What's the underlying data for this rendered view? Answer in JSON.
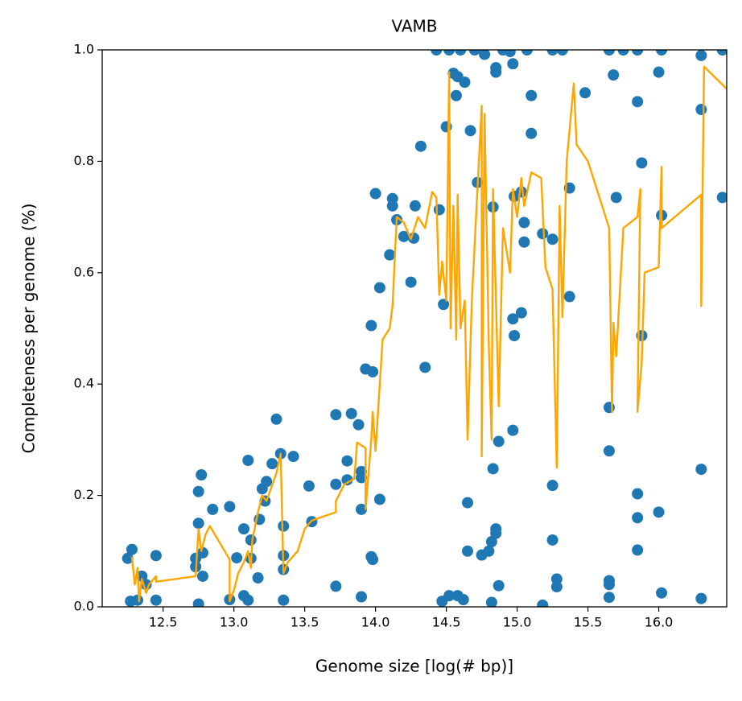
{
  "chart_data": {
    "type": "scatter",
    "title": "VAMB",
    "x_label": "Genome size [log(# bp)]",
    "y_label": "Completeness per genome (%)",
    "xlim": [
      12.07,
      16.48
    ],
    "ylim": [
      0,
      1
    ],
    "xticks": [
      12.5,
      {
        "value": 13,
        "label": "13.0"
      },
      13.5,
      {
        "value": 14,
        "label": "14.0"
      },
      14.5,
      {
        "value": 15,
        "label": "15.0"
      },
      15.5,
      {
        "value": 16,
        "label": "16.0"
      }
    ],
    "yticks": [
      {
        "value": 0,
        "label": "0.0"
      },
      0.2,
      0.4,
      0.6,
      0.8,
      {
        "value": 1,
        "label": "1.0"
      }
    ],
    "series": [
      {
        "type": "scatter",
        "color": "#1f77b4",
        "x": [
          12.25,
          12.28,
          12.27,
          12.32,
          12.35,
          12.38,
          12.45,
          12.45,
          12.73,
          12.73,
          12.75,
          12.75,
          12.77,
          12.78,
          12.78,
          12.75,
          12.85,
          12.97,
          12.97,
          13.02,
          13.07,
          13.07,
          13.1,
          13.1,
          13.12,
          13.12,
          13.17,
          13.18,
          13.2,
          13.22,
          13.23,
          13.27,
          13.3,
          13.33,
          13.35,
          13.35,
          13.35,
          13.35,
          13.42,
          13.53,
          13.55,
          13.72,
          13.72,
          13.72,
          13.8,
          13.8,
          13.83,
          13.88,
          13.9,
          13.9,
          13.9,
          13.9,
          13.93,
          13.97,
          13.97,
          13.98,
          13.98,
          14.0,
          14.03,
          14.03,
          14.1,
          14.12,
          14.12,
          14.15,
          14.2,
          14.25,
          14.27,
          14.28,
          14.32,
          14.35,
          14.43,
          14.45,
          14.47,
          14.48,
          14.5,
          14.52,
          14.52,
          14.55,
          14.57,
          14.58,
          14.58,
          14.6,
          14.62,
          14.63,
          14.65,
          14.65,
          14.67,
          14.7,
          14.72,
          14.75,
          14.77,
          14.8,
          14.82,
          14.82,
          14.83,
          14.83,
          14.85,
          14.85,
          14.85,
          14.85,
          14.87,
          14.87,
          14.9,
          14.95,
          14.97,
          14.97,
          14.98,
          14.98,
          14.97,
          15.03,
          15.03,
          15.05,
          15.05,
          15.07,
          15.1,
          15.1,
          15.18,
          15.18,
          15.25,
          15.25,
          15.25,
          15.25,
          15.28,
          15.28,
          15.32,
          15.37,
          15.37,
          15.48,
          15.65,
          15.65,
          15.65,
          15.65,
          15.65,
          15.65,
          15.68,
          15.7,
          15.75,
          15.85,
          15.85,
          15.85,
          15.85,
          15.85,
          15.88,
          15.88,
          16.0,
          16.0,
          16.02,
          16.02,
          16.02,
          16.3,
          16.3,
          16.3,
          16.3,
          16.45,
          16.45
        ],
        "values": [
          0.087,
          0.103,
          0.01,
          0.012,
          0.055,
          0.04,
          0.092,
          0.012,
          0.087,
          0.072,
          0.15,
          0.207,
          0.237,
          0.097,
          0.055,
          0.005,
          0.175,
          0.18,
          0.013,
          0.088,
          0.14,
          0.02,
          0.012,
          0.263,
          0.12,
          0.087,
          0.052,
          0.157,
          0.212,
          0.19,
          0.225,
          0.257,
          0.337,
          0.275,
          0.145,
          0.092,
          0.067,
          0.012,
          0.27,
          0.217,
          0.153,
          0.345,
          0.22,
          0.037,
          0.262,
          0.228,
          0.347,
          0.327,
          0.243,
          0.232,
          0.175,
          0.018,
          0.427,
          0.505,
          0.09,
          0.085,
          0.422,
          0.742,
          0.573,
          0.193,
          0.632,
          0.733,
          0.72,
          0.695,
          0.665,
          0.583,
          0.662,
          0.72,
          0.827,
          0.43,
          1.0,
          0.713,
          0.01,
          0.543,
          0.862,
          1.0,
          0.02,
          0.958,
          0.918,
          0.952,
          0.02,
          1.0,
          0.013,
          0.942,
          0.187,
          0.1,
          0.855,
          1.0,
          0.762,
          0.093,
          0.992,
          0.1,
          0.117,
          0.008,
          0.718,
          0.248,
          0.96,
          0.968,
          0.14,
          0.132,
          0.297,
          0.038,
          1.0,
          0.997,
          0.975,
          0.517,
          0.737,
          0.487,
          0.317,
          0.745,
          0.528,
          0.69,
          0.655,
          1.0,
          0.918,
          0.85,
          0.67,
          0.003,
          1.0,
          0.66,
          0.218,
          0.12,
          0.05,
          0.036,
          1.0,
          0.752,
          0.557,
          0.923,
          1.0,
          0.358,
          0.28,
          0.047,
          0.04,
          0.017,
          0.955,
          0.735,
          1.0,
          1.0,
          0.907,
          0.203,
          0.16,
          0.102,
          0.797,
          0.487,
          0.96,
          0.17,
          1.0,
          0.703,
          0.025,
          0.99,
          0.893,
          0.247,
          0.015,
          0.735,
          1.0
        ]
      },
      {
        "type": "line",
        "color": "#ffa500",
        "x": [
          12.28,
          12.3,
          12.32,
          12.33,
          12.35,
          12.38,
          12.4,
          12.45,
          12.45,
          12.73,
          12.75,
          12.77,
          12.8,
          12.83,
          12.97,
          12.97,
          13.0,
          13.03,
          13.07,
          13.1,
          13.12,
          13.13,
          13.17,
          13.2,
          13.23,
          13.3,
          13.33,
          13.35,
          13.38,
          13.45,
          13.5,
          13.55,
          13.72,
          13.72,
          13.78,
          13.85,
          13.87,
          13.93,
          13.93,
          13.97,
          13.98,
          14.0,
          14.05,
          14.1,
          14.12,
          14.15,
          14.2,
          14.25,
          14.3,
          14.35,
          14.4,
          14.43,
          14.45,
          14.47,
          14.5,
          14.52,
          14.53,
          14.55,
          14.57,
          14.58,
          14.6,
          14.63,
          14.65,
          14.68,
          14.72,
          14.75,
          14.75,
          14.77,
          14.8,
          14.82,
          14.83,
          14.87,
          14.9,
          14.95,
          14.97,
          15.0,
          15.03,
          15.05,
          15.1,
          15.17,
          15.2,
          15.25,
          15.28,
          15.3,
          15.32,
          15.35,
          15.4,
          15.42,
          15.5,
          15.65,
          15.67,
          15.68,
          15.7,
          15.75,
          15.85,
          15.87,
          15.85,
          15.88,
          15.9,
          16.0,
          16.02,
          16.02,
          16.3,
          16.3,
          16.32,
          16.48
        ],
        "values": [
          0.09,
          0.04,
          0.07,
          0.01,
          0.05,
          0.025,
          0.04,
          0.055,
          0.045,
          0.055,
          0.14,
          0.1,
          0.13,
          0.145,
          0.085,
          0.01,
          0.03,
          0.06,
          0.08,
          0.1,
          0.07,
          0.12,
          0.17,
          0.2,
          0.19,
          0.24,
          0.275,
          0.06,
          0.08,
          0.1,
          0.14,
          0.155,
          0.17,
          0.19,
          0.22,
          0.23,
          0.295,
          0.285,
          0.175,
          0.3,
          0.35,
          0.28,
          0.48,
          0.5,
          0.54,
          0.7,
          0.69,
          0.66,
          0.7,
          0.68,
          0.745,
          0.735,
          0.56,
          0.62,
          0.55,
          0.96,
          0.5,
          0.72,
          0.48,
          0.74,
          0.5,
          0.55,
          0.3,
          0.55,
          0.75,
          0.9,
          0.27,
          0.885,
          0.47,
          0.3,
          0.75,
          0.36,
          0.68,
          0.6,
          0.75,
          0.7,
          0.77,
          0.72,
          0.78,
          0.77,
          0.61,
          0.57,
          0.25,
          0.72,
          0.52,
          0.8,
          0.94,
          0.83,
          0.8,
          0.68,
          0.35,
          0.51,
          0.45,
          0.68,
          0.7,
          0.75,
          0.35,
          0.44,
          0.6,
          0.61,
          0.79,
          0.68,
          0.74,
          0.54,
          0.97,
          0.93
        ]
      }
    ]
  }
}
